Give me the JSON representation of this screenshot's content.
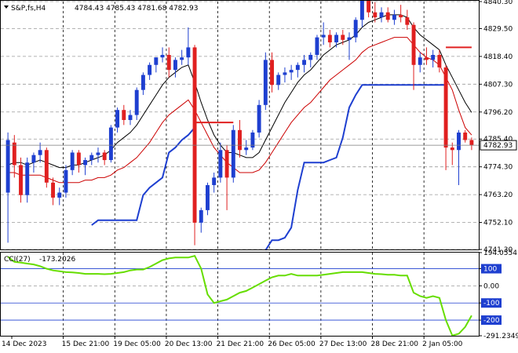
{
  "chart_data": [
    {
      "type": "candlestick",
      "title": "S&P,fs,H4",
      "ohlc_label": "4784.43 4785.43 4781.68 4782.93",
      "last_price": 4782.93,
      "last_price_label": "4782.93",
      "ylim": [
        4741.3,
        4840.3
      ],
      "y_ticks": [
        "4840.30",
        "4829.50",
        "4818.40",
        "4807.30",
        "4796.20",
        "4785.40",
        "4774.30",
        "4763.20",
        "4752.10",
        "4741.30"
      ],
      "x_ticks": [
        "14 Dec 2023",
        "15 Dec 21:00",
        "19 Dec 05:00",
        "20 Dec 13:00",
        "21 Dec 21:00",
        "26 Dec 05:00",
        "27 Dec 13:00",
        "28 Dec 21:00",
        "2 Jan 05:00"
      ],
      "colors": {
        "up": "#1e3fd0",
        "down": "#e02020",
        "fast_ma": "#000000",
        "slow_ma": "#cc0000",
        "envelope": "#1e3fd0",
        "level": "#e02020"
      },
      "candles": [
        {
          "o": 4764,
          "h": 4788,
          "l": 4744,
          "c": 4785
        },
        {
          "o": 4784,
          "h": 4787,
          "l": 4770,
          "c": 4775
        },
        {
          "o": 4775,
          "h": 4778,
          "l": 4760,
          "c": 4763
        },
        {
          "o": 4763,
          "h": 4778,
          "l": 4760,
          "c": 4776
        },
        {
          "o": 4776,
          "h": 4780,
          "l": 4772,
          "c": 4779
        },
        {
          "o": 4779,
          "h": 4784,
          "l": 4776,
          "c": 4781
        },
        {
          "o": 4781,
          "h": 4782,
          "l": 4766,
          "c": 4768
        },
        {
          "o": 4768,
          "h": 4770,
          "l": 4759,
          "c": 4762
        },
        {
          "o": 4762,
          "h": 4766,
          "l": 4759,
          "c": 4764
        },
        {
          "o": 4764,
          "h": 4775,
          "l": 4762,
          "c": 4773
        },
        {
          "o": 4773,
          "h": 4781,
          "l": 4771,
          "c": 4780
        },
        {
          "o": 4780,
          "h": 4781,
          "l": 4772,
          "c": 4775
        },
        {
          "o": 4775,
          "h": 4778,
          "l": 4771,
          "c": 4777
        },
        {
          "o": 4777,
          "h": 4780,
          "l": 4775,
          "c": 4779
        },
        {
          "o": 4779,
          "h": 4782,
          "l": 4776,
          "c": 4780
        },
        {
          "o": 4780,
          "h": 4781,
          "l": 4775,
          "c": 4777
        },
        {
          "o": 4777,
          "h": 4791,
          "l": 4776,
          "c": 4790
        },
        {
          "o": 4790,
          "h": 4798,
          "l": 4788,
          "c": 4797
        },
        {
          "o": 4797,
          "h": 4799,
          "l": 4791,
          "c": 4793
        },
        {
          "o": 4793,
          "h": 4797,
          "l": 4791,
          "c": 4795
        },
        {
          "o": 4795,
          "h": 4806,
          "l": 4793,
          "c": 4805
        },
        {
          "o": 4805,
          "h": 4812,
          "l": 4803,
          "c": 4811
        },
        {
          "o": 4811,
          "h": 4816,
          "l": 4809,
          "c": 4815
        },
        {
          "o": 4815,
          "h": 4818,
          "l": 4812,
          "c": 4818
        },
        {
          "o": 4818,
          "h": 4822,
          "l": 4816,
          "c": 4819
        },
        {
          "o": 4819,
          "h": 4822,
          "l": 4810,
          "c": 4813
        },
        {
          "o": 4813,
          "h": 4818,
          "l": 4810,
          "c": 4817
        },
        {
          "o": 4817,
          "h": 4821,
          "l": 4815,
          "c": 4818
        },
        {
          "o": 4818,
          "h": 4830,
          "l": 4815,
          "c": 4822
        },
        {
          "o": 4822,
          "h": 4823,
          "l": 4743,
          "c": 4752
        },
        {
          "o": 4752,
          "h": 4758,
          "l": 4748,
          "c": 4757
        },
        {
          "o": 4757,
          "h": 4768,
          "l": 4755,
          "c": 4767
        },
        {
          "o": 4767,
          "h": 4772,
          "l": 4764,
          "c": 4770
        },
        {
          "o": 4770,
          "h": 4784,
          "l": 4768,
          "c": 4781
        },
        {
          "o": 4781,
          "h": 4783,
          "l": 4757,
          "c": 4770
        },
        {
          "o": 4770,
          "h": 4791,
          "l": 4768,
          "c": 4789
        },
        {
          "o": 4789,
          "h": 4793,
          "l": 4778,
          "c": 4781
        },
        {
          "o": 4781,
          "h": 4785,
          "l": 4779,
          "c": 4782
        },
        {
          "o": 4782,
          "h": 4789,
          "l": 4781,
          "c": 4788
        },
        {
          "o": 4788,
          "h": 4801,
          "l": 4786,
          "c": 4799
        },
        {
          "o": 4799,
          "h": 4820,
          "l": 4797,
          "c": 4817
        },
        {
          "o": 4817,
          "h": 4820,
          "l": 4804,
          "c": 4807
        },
        {
          "o": 4807,
          "h": 4812,
          "l": 4805,
          "c": 4811
        },
        {
          "o": 4811,
          "h": 4814,
          "l": 4808,
          "c": 4812
        },
        {
          "o": 4812,
          "h": 4815,
          "l": 4809,
          "c": 4813
        },
        {
          "o": 4813,
          "h": 4816,
          "l": 4810,
          "c": 4815
        },
        {
          "o": 4815,
          "h": 4819,
          "l": 4812,
          "c": 4817
        },
        {
          "o": 4817,
          "h": 4820,
          "l": 4814,
          "c": 4819
        },
        {
          "o": 4819,
          "h": 4827,
          "l": 4817,
          "c": 4826
        },
        {
          "o": 4826,
          "h": 4832,
          "l": 4823,
          "c": 4827
        },
        {
          "o": 4827,
          "h": 4829,
          "l": 4822,
          "c": 4824
        },
        {
          "o": 4824,
          "h": 4828,
          "l": 4822,
          "c": 4827
        },
        {
          "o": 4827,
          "h": 4829,
          "l": 4823,
          "c": 4825
        },
        {
          "o": 4825,
          "h": 4828,
          "l": 4817,
          "c": 4826
        },
        {
          "o": 4826,
          "h": 4834,
          "l": 4824,
          "c": 4833
        },
        {
          "o": 4833,
          "h": 4842,
          "l": 4830,
          "c": 4841
        },
        {
          "o": 4841,
          "h": 4842,
          "l": 4834,
          "c": 4836
        },
        {
          "o": 4836,
          "h": 4840,
          "l": 4832,
          "c": 4834
        },
        {
          "o": 4834,
          "h": 4838,
          "l": 4832,
          "c": 4836
        },
        {
          "o": 4836,
          "h": 4838,
          "l": 4832,
          "c": 4833
        },
        {
          "o": 4833,
          "h": 4837,
          "l": 4831,
          "c": 4835
        },
        {
          "o": 4835,
          "h": 4839,
          "l": 4832,
          "c": 4834
        },
        {
          "o": 4834,
          "h": 4837,
          "l": 4829,
          "c": 4831
        },
        {
          "o": 4831,
          "h": 4832,
          "l": 4805,
          "c": 4815
        },
        {
          "o": 4815,
          "h": 4820,
          "l": 4812,
          "c": 4818
        },
        {
          "o": 4818,
          "h": 4822,
          "l": 4815,
          "c": 4817
        },
        {
          "o": 4817,
          "h": 4821,
          "l": 4814,
          "c": 4819
        },
        {
          "o": 4819,
          "h": 4821,
          "l": 4812,
          "c": 4814
        },
        {
          "o": 4814,
          "h": 4815,
          "l": 4773,
          "c": 4782
        },
        {
          "o": 4782,
          "h": 4784,
          "l": 4775,
          "c": 4781
        },
        {
          "o": 4781,
          "h": 4789,
          "l": 4767,
          "c": 4788
        },
        {
          "o": 4788,
          "h": 4789,
          "l": 4784,
          "c": 4785
        },
        {
          "o": 4785,
          "h": 4786,
          "l": 4781,
          "c": 4783
        }
      ],
      "fast_ma": [
        4775,
        4776,
        4776,
        4775,
        4776,
        4777,
        4776,
        4775,
        4774,
        4774,
        4775,
        4775,
        4776,
        4777,
        4778,
        4779,
        4781,
        4784,
        4786,
        4788,
        4791,
        4795,
        4799,
        4803,
        4807,
        4810,
        4812,
        4814,
        4815,
        4808,
        4800,
        4793,
        4787,
        4783,
        4780,
        4780,
        4779,
        4778,
        4778,
        4780,
        4785,
        4790,
        4795,
        4800,
        4804,
        4808,
        4811,
        4813,
        4816,
        4819,
        4821,
        4823,
        4824,
        4825,
        4827,
        4830,
        4832,
        4833,
        4834,
        4835,
        4835,
        4835,
        4834,
        4830,
        4827,
        4825,
        4823,
        4821,
        4815,
        4810,
        4805,
        4800,
        4796
      ],
      "slow_ma": [
        4772,
        4772,
        4771,
        4771,
        4771,
        4771,
        4770,
        4769,
        4768,
        4768,
        4768,
        4768,
        4769,
        4769,
        4770,
        4770,
        4771,
        4773,
        4774,
        4776,
        4778,
        4781,
        4784,
        4788,
        4792,
        4795,
        4797,
        4799,
        4801,
        4797,
        4792,
        4787,
        4782,
        4779,
        4776,
        4774,
        4772,
        4772,
        4772,
        4773,
        4776,
        4780,
        4784,
        4788,
        4792,
        4795,
        4798,
        4800,
        4803,
        4806,
        4809,
        4811,
        4813,
        4815,
        4817,
        4820,
        4822,
        4823,
        4824,
        4825,
        4826,
        4826,
        4826,
        4823,
        4820,
        4818,
        4817,
        4815,
        4810,
        4805,
        4797,
        4790,
        4787
      ],
      "envelope": [
        null,
        null,
        null,
        null,
        null,
        null,
        null,
        null,
        null,
        null,
        null,
        null,
        null,
        4751,
        4753,
        4753,
        4753,
        4753,
        4753,
        4753,
        4753,
        4763,
        4766,
        4768,
        4770,
        4780,
        4782,
        4785,
        4787,
        4790,
        null,
        null,
        null,
        null,
        null,
        null,
        null,
        null,
        null,
        null,
        4741,
        4745,
        4745,
        4746,
        4750,
        4765,
        4776,
        4776,
        4776,
        4776,
        4777,
        4778,
        4786,
        4798,
        4803,
        4807,
        4807,
        4807,
        4807,
        4807,
        4807,
        4807,
        4807,
        4807,
        4807,
        4807,
        4807,
        4807,
        4807,
        null,
        null,
        null,
        null
      ],
      "level_segments": [
        {
          "from": 29,
          "to": 35,
          "value": 4792
        },
        {
          "from": 68,
          "to": 72,
          "value": 4822
        }
      ]
    },
    {
      "type": "line",
      "title": "CCI(27)",
      "value_label": "-173.2026",
      "ylim": [
        -291.2349,
        194.0554
      ],
      "y_ticks": [
        "194.0554",
        "100",
        "0.00",
        "-100",
        "-200",
        "-291.2349"
      ],
      "levels": [
        100,
        -100,
        -200
      ],
      "color": "#66dd00",
      "values": [
        170,
        140,
        136,
        130,
        125,
        115,
        100,
        90,
        85,
        80,
        78,
        75,
        70,
        70,
        70,
        68,
        70,
        75,
        80,
        90,
        95,
        95,
        110,
        130,
        150,
        160,
        165,
        165,
        165,
        175,
        100,
        -50,
        -100,
        -90,
        -80,
        -60,
        -40,
        -30,
        -10,
        10,
        30,
        50,
        60,
        60,
        70,
        60,
        60,
        60,
        60,
        65,
        70,
        75,
        80,
        80,
        80,
        80,
        75,
        70,
        68,
        65,
        65,
        60,
        60,
        -40,
        -60,
        -70,
        -60,
        -70,
        -200,
        -290,
        -280,
        -240,
        -173
      ]
    }
  ]
}
